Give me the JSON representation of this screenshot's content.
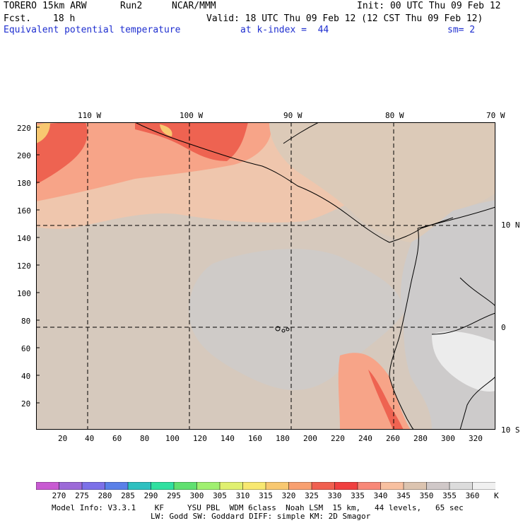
{
  "header": {
    "model": "TORERO",
    "resolution": "15km ARW",
    "run": "Run2",
    "org": "NCAR/MMM",
    "init": "Init: 00 UTC Thu 09 Feb 12",
    "fcst_label": "Fcst.",
    "fcst_value": "18 h",
    "valid": "Valid: 18 UTC Thu 09 Feb 12 (12 CST Thu 09 Feb 12)",
    "field": "Equivalent potential temperature",
    "index": "at k-index =  44",
    "smooth": "sm= 2"
  },
  "map": {
    "top_lon_labels": [
      "110 W",
      "100 W",
      "90 W",
      "80 W",
      "70 W"
    ],
    "right_lat_labels": [
      "10 N",
      "0",
      "10 S"
    ],
    "left_ticks": [
      "220",
      "200",
      "180",
      "160",
      "140",
      "120",
      "100",
      "80",
      "60",
      "40",
      "20"
    ],
    "bottom_ticks": [
      "20",
      "40",
      "60",
      "80",
      "100",
      "120",
      "140",
      "160",
      "180",
      "200",
      "220",
      "240",
      "260",
      "280",
      "300",
      "320"
    ]
  },
  "colorbar": {
    "labels": [
      "270",
      "275",
      "280",
      "285",
      "290",
      "295",
      "300",
      "305",
      "310",
      "315",
      "320",
      "325",
      "330",
      "335",
      "340",
      "345",
      "350",
      "355",
      "360"
    ],
    "unit": "K",
    "colors": [
      "#c85ad2",
      "#9c6ad8",
      "#7c70e8",
      "#5a80e8",
      "#2ec0c0",
      "#30e0a0",
      "#60e070",
      "#a0f070",
      "#e0f070",
      "#f8e870",
      "#f8c870",
      "#f8a070",
      "#f06050",
      "#f04040",
      "#f88878",
      "#f8c0a0",
      "#dcc4b0",
      "#d0c8c8",
      "#dcdcdc",
      "#f0f0f0"
    ]
  },
  "footer": {
    "line1": "Model Info: V3.3.1    KF     YSU PBL  WDM 6class  Noah LSM  15 km,   44 levels,   65 sec",
    "line2": "LW: Godd SW: Goddard DIFF: simple KM: 2D Smagor"
  }
}
